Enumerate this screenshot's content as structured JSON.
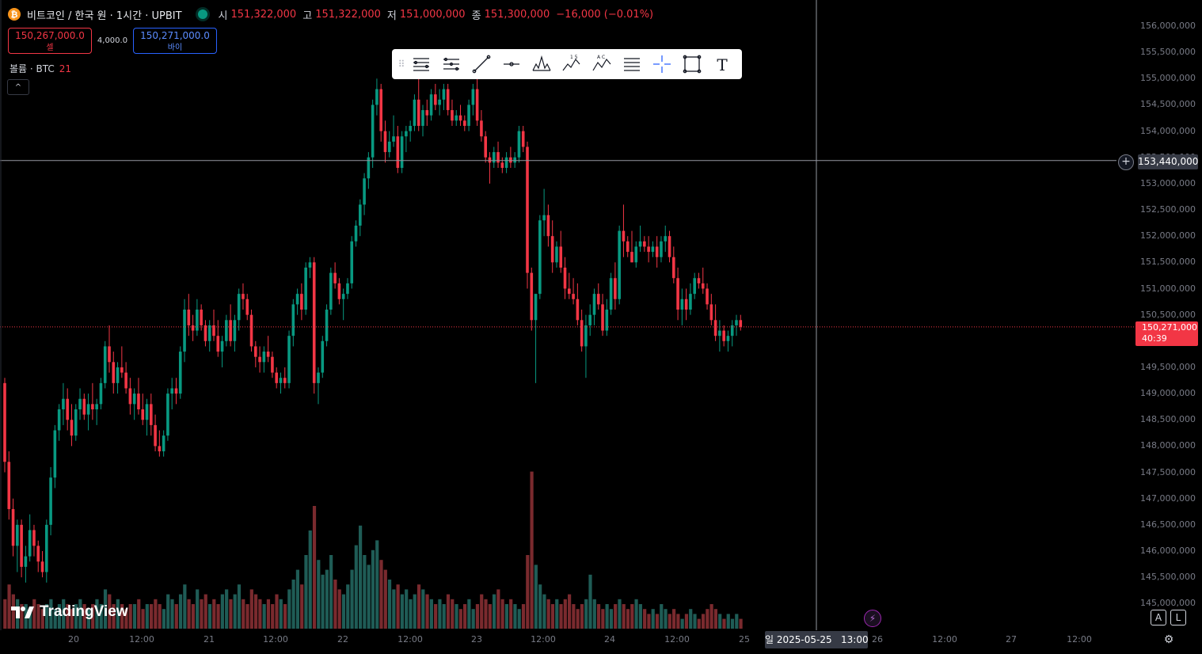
{
  "header": {
    "coin_glyph": "₿",
    "symbol_title": "비트코인 / 한국 원 · 1시간 · UPBIT",
    "ohlc": [
      {
        "key": "시",
        "value": "151,322,000"
      },
      {
        "key": "고",
        "value": "151,322,000"
      },
      {
        "key": "저",
        "value": "151,000,000"
      },
      {
        "key": "종",
        "value": "151,300,000"
      }
    ],
    "change": "−16,000 (−0.01%)"
  },
  "trade": {
    "sell_price": "150,267,000.0",
    "sell_label": "셀",
    "spread": "4,000.0",
    "buy_price": "150,271,000.0",
    "buy_label": "바이"
  },
  "volume_legend": {
    "label": "볼륨 · BTC",
    "value": "21"
  },
  "collapse_glyph": "^",
  "toolbar": {
    "grip": "⠿",
    "tools": [
      "trend-channel-icon",
      "fib-retracement-icon",
      "trend-line-icon",
      "horizontal-ray-icon",
      "head-shoulders-icon",
      "elliott-wave-icon",
      "abcd-pattern-icon",
      "horizontal-lines-icon",
      "crosshair-icon",
      "rectangle-icon",
      "text-icon"
    ],
    "elliott_label": "1 5",
    "abcd_label": "A C",
    "text_label": "T"
  },
  "price_axis": {
    "ticks": [
      "156,000,000",
      "155,500,000",
      "155,000,000",
      "154,500,000",
      "154,000,000",
      "153,500,000",
      "153,000,000",
      "152,500,000",
      "152,000,000",
      "151,500,000",
      "151,000,000",
      "150,500,000",
      "149,500,000",
      "149,000,000",
      "148,500,000",
      "148,000,000",
      "147,500,000",
      "147,000,000",
      "146,500,000",
      "146,000,000",
      "145,500,000",
      "145,000,000"
    ],
    "crosshair_price": "153,440,000",
    "plus_glyph": "+",
    "last_price": "150,271,000",
    "countdown": "40:39"
  },
  "time_axis": {
    "ticks": [
      "20",
      "12:00",
      "21",
      "12:00",
      "22",
      "12:00",
      "23",
      "12:00",
      "24",
      "12:00",
      "25",
      "26",
      "12:00",
      "27",
      "12:00"
    ],
    "crosshair_time": "일 2025-05-25   13:00"
  },
  "branding": {
    "logo_text": "TradingView"
  },
  "controls": {
    "auto_label": "A",
    "log_label": "L",
    "bolt_glyph": "⚡",
    "gear_glyph": "⚙"
  },
  "colors": {
    "up": "#089981",
    "down": "#f23645",
    "background": "#000000",
    "crosshair": "#9598a1"
  },
  "chart_data": {
    "type": "candlestick",
    "interval": "1h",
    "ylim": [
      145000000,
      156000000
    ],
    "candles": [
      [
        149.2,
        149.3,
        147.5,
        147.7
      ],
      [
        147.7,
        147.9,
        146.6,
        146.8
      ],
      [
        146.8,
        147.0,
        145.9,
        146.1
      ],
      [
        146.1,
        146.6,
        145.6,
        146.5
      ],
      [
        146.5,
        146.6,
        145.5,
        145.7
      ],
      [
        145.7,
        146.1,
        145.4,
        145.9
      ],
      [
        145.9,
        146.7,
        145.8,
        146.4
      ],
      [
        146.4,
        146.5,
        145.9,
        146.1
      ],
      [
        146.1,
        146.2,
        145.6,
        145.8
      ],
      [
        145.8,
        146.0,
        145.5,
        145.6
      ],
      [
        145.6,
        146.6,
        145.4,
        146.5
      ],
      [
        146.5,
        147.6,
        146.3,
        147.4
      ],
      [
        147.4,
        148.4,
        147.2,
        148.3
      ],
      [
        148.3,
        148.8,
        148.1,
        148.7
      ],
      [
        148.7,
        149.2,
        148.4,
        148.9
      ],
      [
        148.9,
        149.1,
        148.3,
        148.5
      ],
      [
        148.5,
        148.8,
        148.0,
        148.2
      ],
      [
        148.2,
        148.8,
        148.1,
        148.7
      ],
      [
        148.7,
        149.1,
        148.5,
        148.9
      ],
      [
        148.9,
        149.0,
        148.5,
        148.6
      ],
      [
        148.6,
        149.0,
        148.3,
        148.8
      ],
      [
        148.8,
        149.2,
        148.5,
        148.7
      ],
      [
        148.7,
        148.9,
        148.4,
        148.8
      ],
      [
        148.8,
        149.3,
        148.7,
        149.2
      ],
      [
        149.2,
        150.0,
        149.1,
        149.9
      ],
      [
        149.9,
        150.3,
        149.4,
        149.6
      ],
      [
        149.6,
        149.8,
        149.0,
        149.2
      ],
      [
        149.2,
        149.6,
        149.0,
        149.5
      ],
      [
        149.5,
        149.9,
        149.3,
        149.4
      ],
      [
        149.4,
        149.6,
        149.0,
        149.1
      ],
      [
        149.1,
        149.3,
        148.6,
        148.8
      ],
      [
        148.8,
        149.1,
        148.5,
        149.0
      ],
      [
        149.0,
        149.3,
        148.6,
        148.7
      ],
      [
        148.7,
        149.0,
        148.4,
        148.5
      ],
      [
        148.5,
        148.9,
        148.2,
        148.8
      ],
      [
        148.8,
        149.0,
        148.2,
        148.4
      ],
      [
        148.4,
        148.6,
        147.9,
        148.0
      ],
      [
        148.0,
        148.3,
        147.8,
        147.9
      ],
      [
        147.9,
        148.3,
        147.8,
        148.2
      ],
      [
        148.2,
        149.1,
        148.1,
        149.0
      ],
      [
        149.0,
        149.3,
        148.7,
        149.1
      ],
      [
        149.1,
        149.3,
        148.8,
        149.0
      ],
      [
        149.0,
        149.9,
        148.9,
        149.8
      ],
      [
        149.8,
        150.8,
        149.6,
        150.6
      ],
      [
        150.6,
        150.9,
        150.1,
        150.3
      ],
      [
        150.3,
        150.5,
        150.0,
        150.2
      ],
      [
        150.2,
        150.8,
        150.1,
        150.6
      ],
      [
        150.6,
        150.7,
        150.2,
        150.3
      ],
      [
        150.3,
        150.4,
        149.9,
        150.0
      ],
      [
        150.0,
        150.4,
        149.8,
        150.3
      ],
      [
        150.3,
        150.6,
        150.0,
        150.1
      ],
      [
        150.1,
        150.4,
        149.7,
        149.8
      ],
      [
        149.8,
        150.1,
        149.5,
        150.0
      ],
      [
        150.0,
        150.5,
        149.9,
        150.4
      ],
      [
        150.4,
        150.7,
        149.9,
        150.0
      ],
      [
        150.0,
        150.5,
        149.8,
        150.4
      ],
      [
        150.4,
        151.0,
        150.2,
        150.9
      ],
      [
        150.9,
        151.1,
        150.6,
        150.8
      ],
      [
        150.8,
        150.9,
        150.4,
        150.5
      ],
      [
        150.5,
        150.6,
        149.8,
        149.9
      ],
      [
        149.9,
        150.0,
        149.5,
        149.7
      ],
      [
        149.7,
        149.9,
        149.4,
        149.6
      ],
      [
        149.6,
        149.9,
        149.4,
        149.8
      ],
      [
        149.8,
        150.1,
        149.6,
        149.7
      ],
      [
        149.7,
        149.8,
        149.3,
        149.4
      ],
      [
        149.4,
        149.5,
        149.1,
        149.2
      ],
      [
        149.2,
        149.4,
        149.0,
        149.3
      ],
      [
        149.3,
        149.5,
        149.1,
        149.2
      ],
      [
        149.2,
        150.2,
        149.1,
        150.1
      ],
      [
        150.1,
        150.8,
        149.9,
        150.7
      ],
      [
        150.7,
        151.0,
        150.5,
        150.9
      ],
      [
        150.9,
        151.1,
        150.4,
        150.6
      ],
      [
        150.6,
        151.5,
        150.5,
        151.4
      ],
      [
        151.4,
        151.6,
        151.2,
        151.5
      ],
      [
        151.5,
        151.6,
        149.0,
        149.2
      ],
      [
        149.2,
        149.5,
        148.8,
        149.4
      ],
      [
        149.4,
        150.1,
        149.3,
        150.0
      ],
      [
        150.0,
        150.7,
        149.9,
        150.6
      ],
      [
        150.6,
        151.4,
        150.5,
        151.3
      ],
      [
        151.3,
        151.5,
        151.0,
        151.1
      ],
      [
        151.1,
        151.2,
        150.7,
        150.8
      ],
      [
        150.8,
        151.0,
        150.4,
        150.9
      ],
      [
        150.9,
        151.2,
        150.8,
        151.1
      ],
      [
        151.1,
        152.0,
        151.0,
        151.9
      ],
      [
        151.9,
        152.3,
        151.8,
        152.2
      ],
      [
        152.2,
        152.7,
        152.0,
        152.6
      ],
      [
        152.6,
        153.2,
        152.4,
        153.1
      ],
      [
        153.1,
        153.6,
        152.9,
        153.5
      ],
      [
        153.5,
        154.6,
        153.3,
        154.5
      ],
      [
        154.5,
        155.0,
        154.3,
        154.8
      ],
      [
        154.8,
        154.9,
        153.8,
        154.0
      ],
      [
        154.0,
        154.2,
        153.4,
        153.6
      ],
      [
        153.6,
        154.0,
        153.5,
        153.8
      ],
      [
        153.8,
        154.3,
        153.7,
        153.9
      ],
      [
        153.9,
        154.1,
        153.2,
        153.3
      ],
      [
        153.3,
        154.0,
        153.2,
        153.9
      ],
      [
        153.9,
        154.1,
        153.6,
        154.0
      ],
      [
        154.0,
        154.2,
        153.8,
        154.1
      ],
      [
        154.1,
        154.7,
        154.0,
        154.6
      ],
      [
        154.6,
        155.0,
        154.0,
        154.1
      ],
      [
        154.1,
        154.5,
        153.9,
        154.4
      ],
      [
        154.4,
        154.6,
        154.1,
        154.3
      ],
      [
        154.3,
        154.8,
        154.2,
        154.7
      ],
      [
        154.7,
        154.9,
        154.4,
        154.5
      ],
      [
        154.5,
        154.8,
        154.3,
        154.6
      ],
      [
        154.6,
        154.9,
        154.4,
        154.8
      ],
      [
        154.8,
        154.9,
        154.3,
        154.4
      ],
      [
        154.4,
        154.6,
        154.1,
        154.2
      ],
      [
        154.2,
        154.4,
        154.1,
        154.3
      ],
      [
        154.3,
        154.5,
        154.1,
        154.2
      ],
      [
        154.2,
        154.3,
        154.0,
        154.1
      ],
      [
        154.1,
        154.6,
        154.0,
        154.5
      ],
      [
        154.5,
        154.9,
        154.3,
        154.8
      ],
      [
        154.8,
        155.0,
        154.1,
        154.2
      ],
      [
        154.2,
        154.4,
        153.8,
        153.9
      ],
      [
        153.9,
        154.0,
        153.4,
        153.5
      ],
      [
        153.5,
        153.6,
        153.0,
        153.4
      ],
      [
        153.4,
        153.7,
        153.3,
        153.6
      ],
      [
        153.6,
        153.8,
        153.3,
        153.4
      ],
      [
        153.4,
        153.5,
        153.2,
        153.3
      ],
      [
        153.3,
        153.6,
        153.2,
        153.5
      ],
      [
        153.5,
        153.7,
        153.3,
        153.4
      ],
      [
        153.4,
        153.6,
        153.3,
        153.5
      ],
      [
        153.5,
        154.1,
        153.4,
        154.0
      ],
      [
        154.0,
        154.1,
        153.6,
        153.7
      ],
      [
        153.7,
        153.8,
        151.0,
        151.3
      ],
      [
        151.3,
        151.4,
        150.2,
        150.4
      ],
      [
        150.4,
        150.6,
        149.2,
        150.9
      ],
      [
        150.9,
        152.4,
        150.8,
        152.3
      ],
      [
        152.3,
        152.9,
        152.0,
        152.4
      ],
      [
        152.4,
        152.6,
        151.8,
        152.0
      ],
      [
        152.0,
        152.3,
        151.3,
        151.5
      ],
      [
        151.5,
        151.9,
        151.4,
        151.8
      ],
      [
        151.8,
        152.1,
        151.3,
        151.4
      ],
      [
        151.4,
        151.6,
        150.8,
        151.0
      ],
      [
        151.0,
        151.3,
        150.8,
        150.9
      ],
      [
        150.9,
        151.2,
        150.7,
        150.8
      ],
      [
        150.8,
        151.1,
        150.3,
        150.4
      ],
      [
        150.4,
        150.6,
        149.8,
        149.9
      ],
      [
        149.9,
        150.5,
        149.3,
        150.3
      ],
      [
        150.3,
        150.7,
        150.1,
        150.5
      ],
      [
        150.5,
        151.0,
        150.3,
        150.9
      ],
      [
        150.9,
        151.1,
        150.6,
        150.7
      ],
      [
        150.7,
        150.9,
        150.1,
        150.2
      ],
      [
        150.2,
        150.8,
        150.1,
        150.6
      ],
      [
        150.6,
        151.3,
        150.5,
        151.2
      ],
      [
        151.2,
        151.5,
        150.6,
        150.8
      ],
      [
        150.8,
        152.2,
        150.7,
        152.1
      ],
      [
        152.1,
        152.6,
        151.6,
        151.9
      ],
      [
        151.9,
        152.0,
        151.6,
        151.7
      ],
      [
        151.7,
        152.1,
        151.5,
        151.5
      ],
      [
        151.5,
        151.9,
        151.4,
        151.8
      ],
      [
        151.8,
        152.2,
        151.7,
        151.9
      ],
      [
        151.9,
        152.0,
        151.7,
        151.8
      ],
      [
        151.8,
        152.0,
        151.5,
        151.7
      ],
      [
        151.7,
        151.9,
        151.6,
        151.8
      ],
      [
        151.8,
        152.0,
        151.4,
        151.6
      ],
      [
        151.6,
        152.0,
        151.5,
        151.9
      ],
      [
        151.9,
        152.2,
        151.7,
        152.0
      ],
      [
        152.0,
        152.1,
        151.5,
        151.6
      ],
      [
        151.6,
        151.8,
        151.1,
        151.2
      ],
      [
        151.2,
        151.4,
        150.4,
        150.6
      ],
      [
        150.6,
        151.0,
        150.3,
        150.8
      ],
      [
        150.8,
        151.0,
        150.4,
        150.6
      ],
      [
        150.6,
        151.1,
        150.5,
        150.9
      ],
      [
        150.9,
        151.3,
        150.8,
        151.2
      ],
      [
        151.2,
        151.3,
        151.0,
        151.1
      ],
      [
        151.1,
        151.4,
        150.9,
        151.0
      ],
      [
        151.0,
        151.1,
        150.6,
        150.7
      ],
      [
        150.7,
        150.9,
        150.3,
        150.4
      ],
      [
        150.4,
        150.7,
        150.0,
        150.1
      ],
      [
        150.1,
        150.4,
        149.8,
        150.2
      ],
      [
        150.2,
        150.3,
        149.9,
        150.0
      ],
      [
        150.0,
        150.2,
        149.8,
        150.1
      ],
      [
        150.1,
        150.4,
        149.9,
        150.3
      ],
      [
        150.3,
        150.5,
        150.1,
        150.4
      ],
      [
        150.4,
        150.5,
        150.2,
        150.27
      ]
    ],
    "volumes": [
      0.06,
      0.09,
      0.07,
      0.06,
      0.05,
      0.05,
      0.04,
      0.06,
      0.05,
      0.04,
      0.05,
      0.06,
      0.04,
      0.05,
      0.06,
      0.05,
      0.04,
      0.05,
      0.06,
      0.05,
      0.04,
      0.05,
      0.06,
      0.05,
      0.08,
      0.07,
      0.05,
      0.06,
      0.05,
      0.04,
      0.05,
      0.05,
      0.06,
      0.04,
      0.05,
      0.05,
      0.06,
      0.05,
      0.04,
      0.07,
      0.06,
      0.05,
      0.07,
      0.09,
      0.06,
      0.05,
      0.08,
      0.06,
      0.07,
      0.05,
      0.06,
      0.05,
      0.07,
      0.08,
      0.06,
      0.07,
      0.09,
      0.06,
      0.05,
      0.08,
      0.07,
      0.06,
      0.05,
      0.06,
      0.05,
      0.07,
      0.06,
      0.05,
      0.08,
      0.1,
      0.12,
      0.09,
      0.15,
      0.2,
      0.25,
      0.14,
      0.11,
      0.12,
      0.15,
      0.1,
      0.08,
      0.07,
      0.09,
      0.12,
      0.17,
      0.21,
      0.15,
      0.13,
      0.16,
      0.18,
      0.14,
      0.12,
      0.1,
      0.08,
      0.09,
      0.07,
      0.08,
      0.06,
      0.07,
      0.09,
      0.08,
      0.07,
      0.06,
      0.05,
      0.06,
      0.05,
      0.07,
      0.06,
      0.05,
      0.04,
      0.05,
      0.06,
      0.04,
      0.05,
      0.07,
      0.06,
      0.05,
      0.07,
      0.08,
      0.06,
      0.05,
      0.06,
      0.05,
      0.04,
      0.05,
      0.15,
      0.32,
      0.13,
      0.09,
      0.07,
      0.06,
      0.05,
      0.06,
      0.05,
      0.06,
      0.07,
      0.05,
      0.04,
      0.05,
      0.06,
      0.11,
      0.06,
      0.05,
      0.04,
      0.05,
      0.04,
      0.05,
      0.06,
      0.05,
      0.04,
      0.05,
      0.06,
      0.05,
      0.04,
      0.03,
      0.04,
      0.03,
      0.05,
      0.04,
      0.03,
      0.04,
      0.03,
      0.02,
      0.03,
      0.04,
      0.03,
      0.02,
      0.03,
      0.04,
      0.05,
      0.04,
      0.03,
      0.02,
      0.03,
      0.02,
      0.03,
      0.02,
      0.03,
      0.02,
      0.03,
      0.02,
      0.03
    ],
    "crosshair_time": "2025-05-25 13:00",
    "crosshair_price": 153440000,
    "last_price": 150271000
  }
}
